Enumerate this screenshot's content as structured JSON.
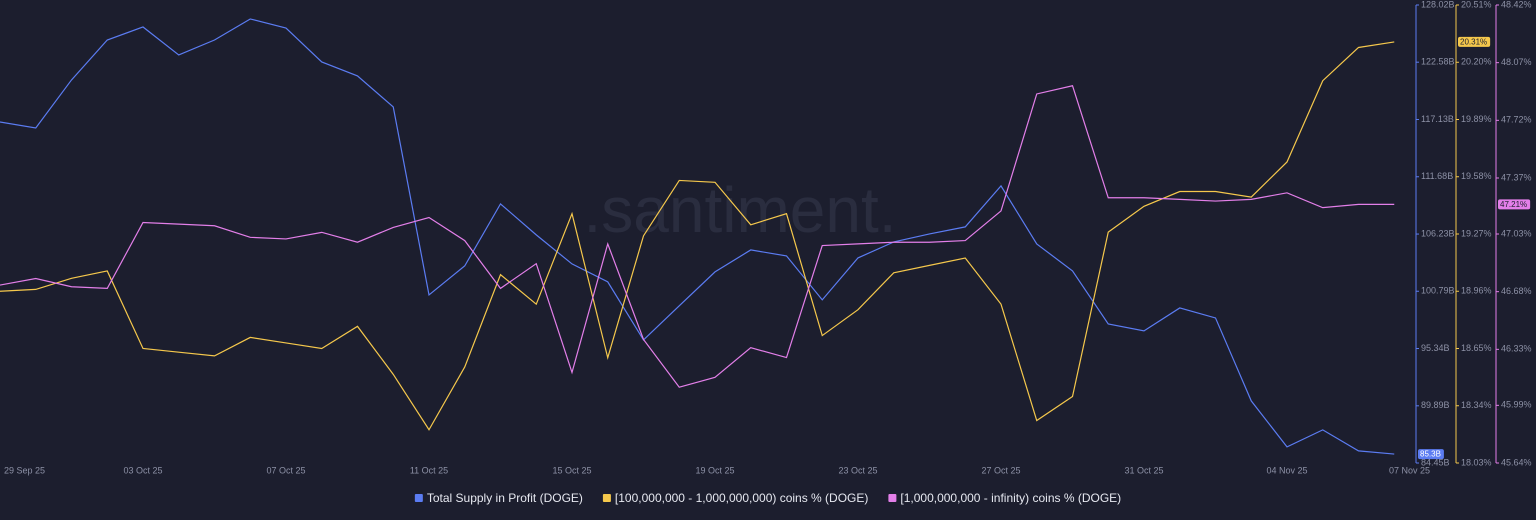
{
  "chart_data": {
    "type": "line",
    "watermark": ".santiment.",
    "categories": [
      "29 Sep 25",
      null,
      null,
      null,
      "03 Oct 25",
      null,
      null,
      null,
      "07 Oct 25",
      null,
      null,
      null,
      "11 Oct 25",
      null,
      null,
      null,
      "15 Oct 25",
      null,
      null,
      null,
      "19 Oct 25",
      null,
      null,
      null,
      "23 Oct 25",
      null,
      null,
      null,
      "27 Oct 25",
      null,
      null,
      null,
      "31 Oct 25",
      null,
      null,
      null,
      "04 Nov 25",
      null,
      null,
      "07 Nov 25"
    ],
    "series": [
      {
        "name": "Total Supply in Profit (DOGE)",
        "color": "#5b7cf2",
        "axis": "y",
        "values": [
          116.89,
          116.32,
          120.89,
          124.69,
          125.93,
          123.27,
          124.69,
          126.69,
          125.83,
          122.6,
          121.27,
          118.32,
          100.44,
          103.2,
          109.1,
          106.15,
          103.39,
          101.68,
          96.16,
          99.4,
          102.63,
          104.72,
          104.15,
          99.97,
          103.96,
          105.48,
          106.24,
          106.91,
          110.81,
          105.29,
          102.72,
          97.68,
          97.02,
          99.2,
          98.25,
          90.36,
          85.98,
          87.6,
          85.6,
          85.3
        ],
        "value_labels": [
          null,
          null,
          null,
          null,
          null,
          null,
          null,
          null,
          null,
          null,
          null,
          null,
          null,
          null,
          null,
          null,
          null,
          null,
          null,
          null,
          null,
          null,
          null,
          null,
          null,
          null,
          null,
          null,
          null,
          null,
          null,
          null,
          null,
          null,
          null,
          null,
          null,
          null,
          null,
          "85.3B"
        ]
      },
      {
        "name": "[100,000,000 - 1,000,000,000) coins % (DOGE)",
        "color": "#f5c84c",
        "axis": "y2",
        "values": [
          18.96,
          18.97,
          19.03,
          19.07,
          18.65,
          18.63,
          18.61,
          18.71,
          18.68,
          18.65,
          18.77,
          18.51,
          18.21,
          18.55,
          19.05,
          18.89,
          19.38,
          18.6,
          19.26,
          19.56,
          19.55,
          19.32,
          19.38,
          18.72,
          18.86,
          19.06,
          19.1,
          19.14,
          18.89,
          18.26,
          18.39,
          19.28,
          19.42,
          19.5,
          19.5,
          19.47,
          19.66,
          20.1,
          20.28,
          20.31
        ],
        "value_labels": [
          null,
          null,
          null,
          null,
          null,
          null,
          null,
          null,
          null,
          null,
          null,
          null,
          null,
          null,
          null,
          null,
          null,
          null,
          null,
          null,
          null,
          null,
          null,
          null,
          null,
          null,
          null,
          null,
          null,
          null,
          null,
          null,
          null,
          null,
          null,
          null,
          null,
          null,
          null,
          "20.31%"
        ]
      },
      {
        "name": "[1,000,000,000 - infinity) coins % (DOGE)",
        "color": "#e37fe9",
        "axis": "y3",
        "values": [
          46.72,
          46.76,
          46.71,
          46.7,
          47.1,
          47.09,
          47.08,
          47.01,
          47.0,
          47.04,
          46.98,
          47.07,
          47.13,
          46.99,
          46.7,
          46.85,
          46.19,
          46.97,
          46.39,
          46.1,
          46.16,
          46.34,
          46.28,
          46.96,
          46.97,
          46.98,
          46.98,
          46.99,
          47.17,
          47.88,
          47.93,
          47.25,
          47.25,
          47.24,
          47.23,
          47.24,
          47.28,
          47.19,
          47.21,
          47.21
        ],
        "value_labels": [
          null,
          null,
          null,
          null,
          null,
          null,
          null,
          null,
          null,
          null,
          null,
          null,
          null,
          null,
          null,
          null,
          null,
          null,
          null,
          null,
          null,
          null,
          null,
          null,
          null,
          null,
          null,
          null,
          null,
          null,
          null,
          null,
          null,
          null,
          null,
          null,
          null,
          null,
          null,
          "47.21%"
        ]
      }
    ],
    "ylim": [
      84.45,
      128.02
    ],
    "yticks": [
      {
        "value": 128.02,
        "label": "128.02B"
      },
      {
        "value": 122.58,
        "label": "122.58B"
      },
      {
        "value": 117.13,
        "label": "117.13B"
      },
      {
        "value": 111.68,
        "label": "111.68B"
      },
      {
        "value": 106.23,
        "label": "106.23B"
      },
      {
        "value": 100.79,
        "label": "100.79B"
      },
      {
        "value": 95.34,
        "label": "95.34B"
      },
      {
        "value": 89.89,
        "label": "89.89B"
      },
      {
        "value": 84.45,
        "label": "84.45B"
      }
    ],
    "y2lim": [
      18.03,
      20.51
    ],
    "y2ticks": [
      {
        "value": 20.51,
        "label": "20.51%"
      },
      {
        "value": 20.2,
        "label": "20.20%"
      },
      {
        "value": 19.89,
        "label": "19.89%"
      },
      {
        "value": 19.58,
        "label": "19.58%"
      },
      {
        "value": 19.27,
        "label": "19.27%"
      },
      {
        "value": 18.96,
        "label": "18.96%"
      },
      {
        "value": 18.65,
        "label": "18.65%"
      },
      {
        "value": 18.34,
        "label": "18.34%"
      },
      {
        "value": 18.03,
        "label": "18.03%"
      }
    ],
    "y3lim": [
      45.64,
      48.42
    ],
    "y3ticks": [
      {
        "value": 48.42,
        "label": "48.42%"
      },
      {
        "value": 48.07,
        "label": "48.07%"
      },
      {
        "value": 47.72,
        "label": "47.72%"
      },
      {
        "value": 47.37,
        "label": "47.37%"
      },
      {
        "value": 47.03,
        "label": "47.03%"
      },
      {
        "value": 46.68,
        "label": "46.68%"
      },
      {
        "value": 46.33,
        "label": "46.33%"
      },
      {
        "value": 45.99,
        "label": "45.99%"
      },
      {
        "value": 45.64,
        "label": "45.64%"
      }
    ]
  }
}
